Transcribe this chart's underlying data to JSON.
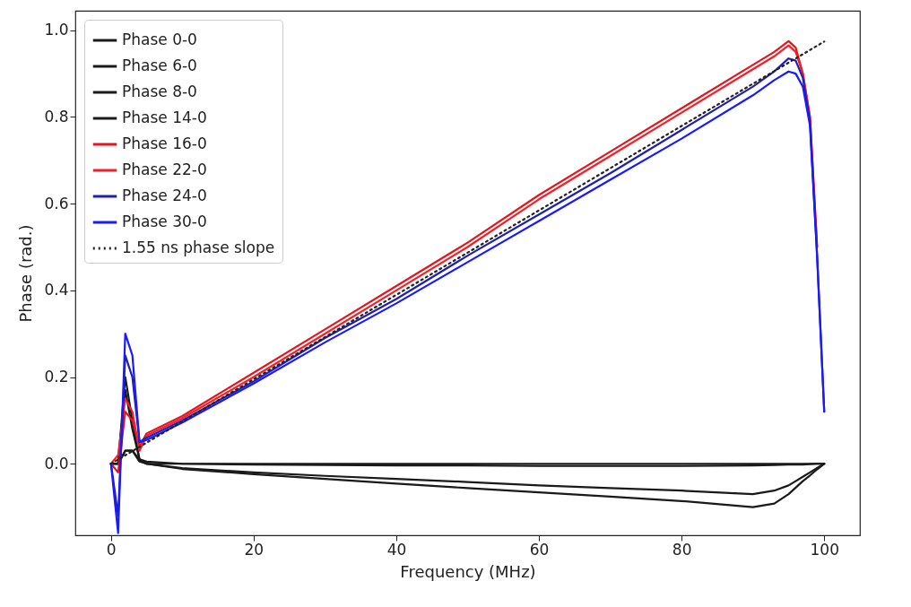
{
  "chart_data": {
    "type": "line",
    "xlabel": "Frequency (MHz)",
    "ylabel": "Phase (rad.)",
    "xlim": [
      -5,
      105
    ],
    "ylim": [
      -0.165,
      1.045
    ],
    "xticks": [
      0,
      20,
      40,
      60,
      80,
      100
    ],
    "yticks": [
      {
        "value": 0,
        "label": "0.0"
      },
      0.2,
      0.4,
      0.6,
      0.8,
      {
        "value": 1,
        "label": "1.0"
      }
    ],
    "x": [
      0,
      1,
      2,
      3,
      4,
      5,
      10,
      20,
      30,
      40,
      50,
      60,
      70,
      80,
      90,
      93,
      95,
      96,
      97,
      98,
      99,
      100
    ],
    "grid": false,
    "legend": "top left",
    "marker": "none",
    "line_style": "solid",
    "series": [
      {
        "name": "Phase 0-0",
        "color": "#1a1a1a",
        "values": [
          0,
          0,
          0.03,
          0.03,
          0.005,
          0,
          0,
          0,
          0,
          0,
          0,
          0,
          0,
          0,
          0,
          0,
          0,
          0,
          0,
          0,
          0,
          0
        ]
      },
      {
        "name": "Phase 6-0",
        "color": "#1a1a1a",
        "values": [
          0,
          0,
          0.2,
          0.1,
          0.01,
          0.005,
          0,
          -0.002,
          -0.003,
          -0.004,
          -0.004,
          -0.005,
          -0.005,
          -0.005,
          -0.004,
          -0.003,
          -0.002,
          -0.002,
          -0.002,
          -0.001,
          0,
          0
        ]
      },
      {
        "name": "Phase 8-0",
        "color": "#1a1a1a",
        "values": [
          0,
          0,
          0.03,
          0.03,
          0.01,
          0,
          -0.01,
          -0.02,
          -0.028,
          -0.035,
          -0.042,
          -0.05,
          -0.056,
          -0.062,
          -0.07,
          -0.062,
          -0.05,
          -0.04,
          -0.03,
          -0.02,
          -0.01,
          0
        ]
      },
      {
        "name": "Phase 14-0",
        "color": "#1a1a1a",
        "values": [
          0,
          0,
          0.17,
          0.08,
          0.01,
          0,
          -0.012,
          -0.024,
          -0.035,
          -0.046,
          -0.056,
          -0.066,
          -0.076,
          -0.086,
          -0.1,
          -0.092,
          -0.07,
          -0.055,
          -0.04,
          -0.027,
          -0.013,
          0
        ]
      },
      {
        "name": "Phase 16-0",
        "color": "#e8141c",
        "values": [
          0,
          -0.02,
          0.12,
          0.1,
          0.04,
          0.07,
          0.11,
          0.21,
          0.31,
          0.41,
          0.51,
          0.62,
          0.72,
          0.82,
          0.92,
          0.95,
          0.975,
          0.96,
          0.9,
          0.8,
          0.5,
          null
        ]
      },
      {
        "name": "Phase 22-0",
        "color": "#f0202a",
        "values": [
          0,
          0.02,
          0.15,
          0.12,
          0.03,
          0.065,
          0.105,
          0.2,
          0.3,
          0.4,
          0.5,
          0.61,
          0.71,
          0.81,
          0.91,
          0.94,
          0.965,
          0.95,
          0.9,
          0.8,
          0.5,
          null
        ]
      },
      {
        "name": "Phase 24-0",
        "color": "#2020b0",
        "values": [
          0,
          -0.12,
          0.25,
          0.2,
          0.05,
          0.06,
          0.1,
          0.19,
          0.29,
          0.38,
          0.48,
          0.575,
          0.67,
          0.77,
          0.87,
          0.905,
          0.935,
          0.93,
          0.89,
          0.79,
          0.48,
          0.12
        ]
      },
      {
        "name": "Phase 30-0",
        "color": "#1a1aff",
        "values": [
          0,
          -0.16,
          0.3,
          0.25,
          0.05,
          0.055,
          0.095,
          0.185,
          0.28,
          0.37,
          0.465,
          0.56,
          0.655,
          0.75,
          0.85,
          0.885,
          0.905,
          0.9,
          0.87,
          0.78,
          0.48,
          0.12
        ]
      },
      {
        "name": "1.55 ns phase slope",
        "color": "#222222",
        "line_style": "dotted",
        "x": [
          0,
          100
        ],
        "values": [
          0,
          0.974
        ]
      }
    ]
  }
}
